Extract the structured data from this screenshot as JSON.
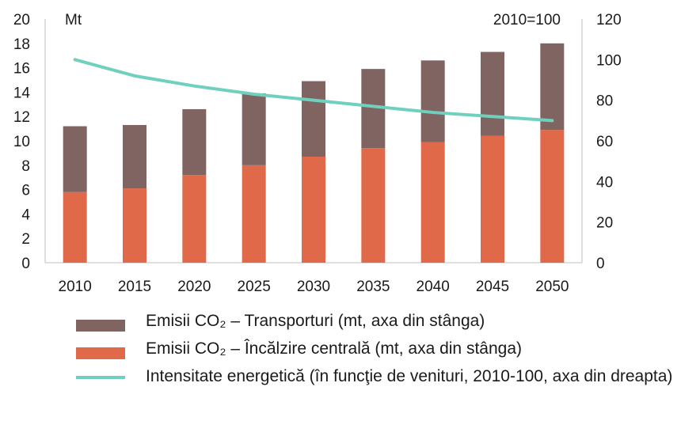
{
  "chart_data": {
    "type": "bar",
    "categories": [
      "2010",
      "2015",
      "2020",
      "2025",
      "2030",
      "2035",
      "2040",
      "2045",
      "2050"
    ],
    "stacked": true,
    "series": [
      {
        "name": "Emisii CO₂ – Încălzire centrală (mt, axa din stânga)",
        "axis": "left",
        "kind": "bar",
        "color": "#e0694a",
        "values": [
          5.8,
          6.1,
          7.2,
          8.0,
          8.7,
          9.4,
          9.9,
          10.4,
          10.9
        ]
      },
      {
        "name": "Emisii CO₂ – Transporturi (mt, axa din stânga)",
        "axis": "left",
        "kind": "bar",
        "color": "#7f6462",
        "values": [
          5.4,
          5.2,
          5.4,
          5.9,
          6.2,
          6.5,
          6.7,
          6.9,
          7.1
        ]
      },
      {
        "name": "Intensitate energetică (în funcţie de venituri, 2010-100, axa din dreapta)",
        "axis": "right",
        "kind": "line",
        "color": "#6fd1bd",
        "values": [
          100,
          92,
          87,
          83,
          80,
          77,
          74,
          72,
          70
        ]
      }
    ],
    "left_axis": {
      "unit_label": "Mt",
      "ylim": [
        0,
        20
      ],
      "ticks": [
        "0",
        "2",
        "4",
        "6",
        "8",
        "10",
        "12",
        "14",
        "16",
        "18",
        "20"
      ]
    },
    "right_axis": {
      "unit_label": "2010=100",
      "ylim": [
        0,
        120
      ],
      "ticks": [
        "0",
        "20",
        "40",
        "60",
        "80",
        "100",
        "120"
      ]
    },
    "grid": false,
    "legend_position": "bottom"
  },
  "legend": {
    "transport": "Emisii CO₂ – Transporturi (mt, axa din stânga)",
    "heating": "Emisii CO₂ – Încălzire centrală (mt, axa din stânga)",
    "intensity": "Intensitate energetică (în funcţie de venituri, 2010-100, axa din dreapta)"
  }
}
